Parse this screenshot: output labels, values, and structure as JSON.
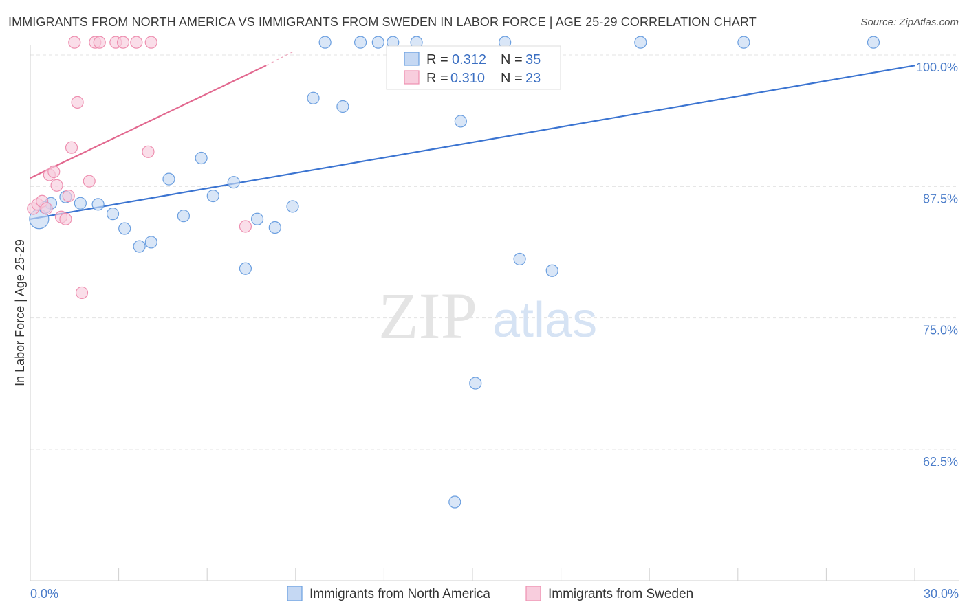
{
  "header": {
    "title": "IMMIGRANTS FROM NORTH AMERICA VS IMMIGRANTS FROM SWEDEN IN LABOR FORCE | AGE 25-29 CORRELATION CHART",
    "source": "Source: ZipAtlas.com"
  },
  "watermark": {
    "zip": "ZIP",
    "atlas": "atlas"
  },
  "chart_data": {
    "type": "scatter",
    "title": "IMMIGRANTS FROM NORTH AMERICA VS IMMIGRANTS FROM SWEDEN IN LABOR FORCE | AGE 25-29 CORRELATION CHART",
    "xlabel": "",
    "ylabel": "In Labor Force | Age 25-29",
    "xlim": [
      0,
      30
    ],
    "ylim": [
      50.3,
      101.3
    ],
    "x_tick_labels": [
      "0.0%",
      "30.0%"
    ],
    "y_ticks": [
      62.5,
      75.0,
      87.5,
      100.0
    ],
    "y_tick_labels": [
      "62.5%",
      "75.0%",
      "87.5%",
      "100.0%"
    ],
    "grid": true,
    "legend_position": "top-center",
    "series": [
      {
        "name": "Immigrants from North America",
        "color": "#6b9fe0",
        "fill": "#c5d8f3",
        "R": "0.312",
        "N": "35",
        "trend": {
          "x": [
            0,
            30
          ],
          "y": [
            84.4,
            99.0
          ]
        },
        "points": [
          {
            "x": 0.3,
            "y": 84.4,
            "big": true
          },
          {
            "x": 0.7,
            "y": 85.9
          },
          {
            "x": 1.2,
            "y": 86.5
          },
          {
            "x": 1.7,
            "y": 85.9
          },
          {
            "x": 2.3,
            "y": 85.8
          },
          {
            "x": 2.8,
            "y": 84.9
          },
          {
            "x": 3.2,
            "y": 83.5
          },
          {
            "x": 3.7,
            "y": 81.8
          },
          {
            "x": 4.1,
            "y": 82.2
          },
          {
            "x": 4.7,
            "y": 88.2
          },
          {
            "x": 5.2,
            "y": 84.7
          },
          {
            "x": 5.8,
            "y": 90.2
          },
          {
            "x": 6.2,
            "y": 86.6
          },
          {
            "x": 6.9,
            "y": 87.9
          },
          {
            "x": 7.3,
            "y": 79.7
          },
          {
            "x": 7.7,
            "y": 84.4
          },
          {
            "x": 8.3,
            "y": 83.6
          },
          {
            "x": 8.9,
            "y": 85.6
          },
          {
            "x": 9.6,
            "y": 95.9
          },
          {
            "x": 10.0,
            "y": 101.2
          },
          {
            "x": 10.6,
            "y": 95.1
          },
          {
            "x": 11.2,
            "y": 101.2
          },
          {
            "x": 11.8,
            "y": 101.2
          },
          {
            "x": 12.3,
            "y": 101.2
          },
          {
            "x": 13.1,
            "y": 101.2
          },
          {
            "x": 14.6,
            "y": 93.7
          },
          {
            "x": 15.1,
            "y": 68.8
          },
          {
            "x": 14.4,
            "y": 57.5
          },
          {
            "x": 16.1,
            "y": 101.2
          },
          {
            "x": 16.6,
            "y": 80.6
          },
          {
            "x": 17.7,
            "y": 79.5
          },
          {
            "x": 20.7,
            "y": 101.2
          },
          {
            "x": 24.2,
            "y": 101.2
          },
          {
            "x": 28.6,
            "y": 101.2
          },
          {
            "x": 0.5,
            "y": 85.5
          }
        ]
      },
      {
        "name": "Immigrants from Sweden",
        "color": "#ee8fb0",
        "fill": "#f8cddd",
        "R": "0.310",
        "N": "23",
        "trend": {
          "x": [
            0,
            8.0
          ],
          "y": [
            88.3,
            99.0
          ]
        },
        "trend_dashed": {
          "x": [
            8.0,
            8.9
          ],
          "y": [
            99.0,
            100.3
          ]
        },
        "points": [
          {
            "x": 0.1,
            "y": 85.4
          },
          {
            "x": 0.25,
            "y": 85.8
          },
          {
            "x": 0.4,
            "y": 86.1
          },
          {
            "x": 0.55,
            "y": 85.4
          },
          {
            "x": 0.65,
            "y": 88.6
          },
          {
            "x": 0.8,
            "y": 88.9
          },
          {
            "x": 0.9,
            "y": 87.6
          },
          {
            "x": 1.05,
            "y": 84.6
          },
          {
            "x": 1.2,
            "y": 84.4
          },
          {
            "x": 1.3,
            "y": 86.6
          },
          {
            "x": 1.4,
            "y": 91.2
          },
          {
            "x": 1.6,
            "y": 95.5
          },
          {
            "x": 1.75,
            "y": 77.4
          },
          {
            "x": 2.0,
            "y": 88.0
          },
          {
            "x": 1.5,
            "y": 101.2
          },
          {
            "x": 2.2,
            "y": 101.2
          },
          {
            "x": 2.35,
            "y": 101.2
          },
          {
            "x": 2.9,
            "y": 101.2
          },
          {
            "x": 3.15,
            "y": 101.2
          },
          {
            "x": 3.6,
            "y": 101.2
          },
          {
            "x": 4.1,
            "y": 101.2
          },
          {
            "x": 4.0,
            "y": 90.8
          },
          {
            "x": 7.3,
            "y": 83.7
          }
        ]
      }
    ]
  },
  "legend": {
    "r_label": "R =",
    "n_label": "N ="
  }
}
